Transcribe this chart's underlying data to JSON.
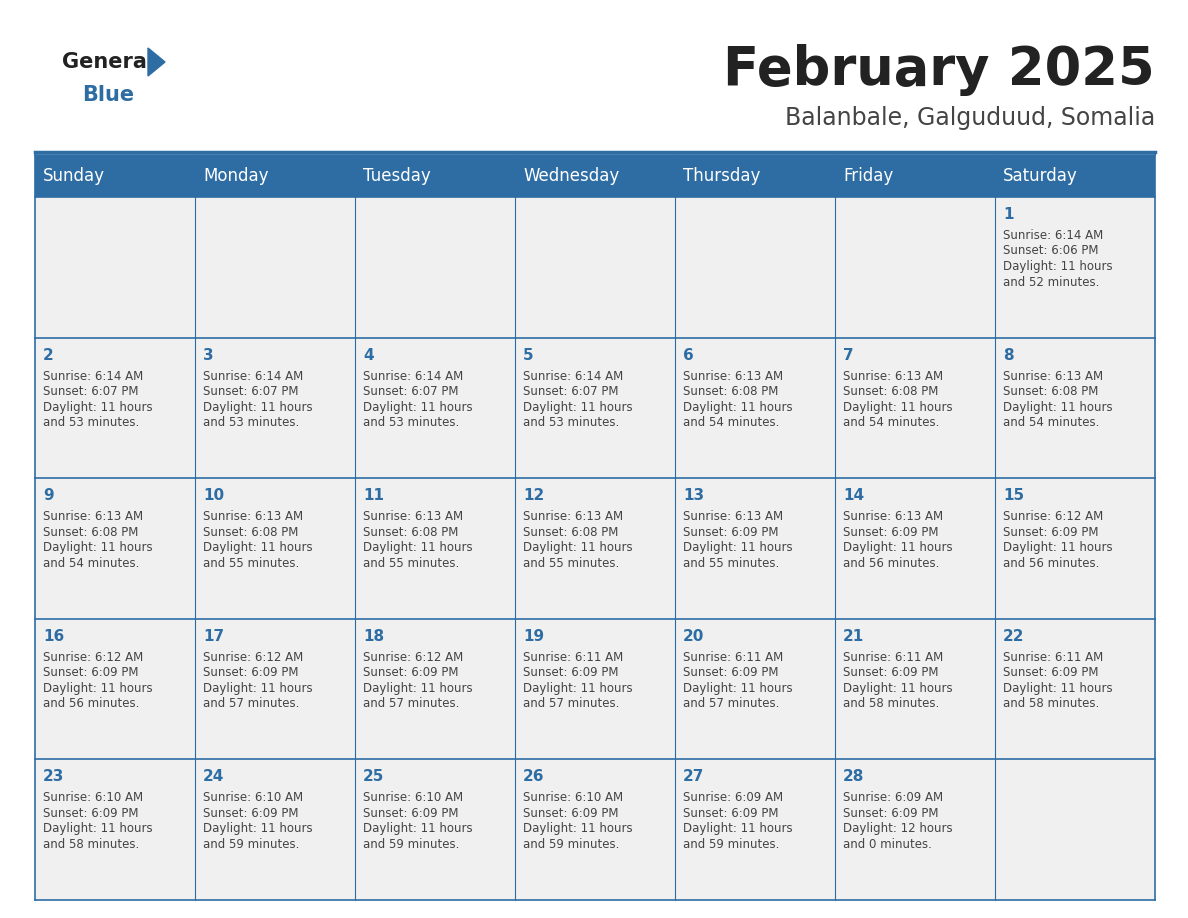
{
  "title": "February 2025",
  "subtitle": "Balanbale, Galguduud, Somalia",
  "header_color": "#2E6DA4",
  "header_text_color": "#FFFFFF",
  "cell_bg_color": "#F0F0F0",
  "border_color": "#2E6DA4",
  "day_number_color": "#2E6DA4",
  "text_color": "#444444",
  "days_of_week": [
    "Sunday",
    "Monday",
    "Tuesday",
    "Wednesday",
    "Thursday",
    "Friday",
    "Saturday"
  ],
  "calendar_data": [
    [
      null,
      null,
      null,
      null,
      null,
      null,
      {
        "day": 1,
        "sunrise": "6:14 AM",
        "sunset": "6:06 PM",
        "daylight_hours": 11,
        "daylight_minutes": 52
      }
    ],
    [
      {
        "day": 2,
        "sunrise": "6:14 AM",
        "sunset": "6:07 PM",
        "daylight_hours": 11,
        "daylight_minutes": 53
      },
      {
        "day": 3,
        "sunrise": "6:14 AM",
        "sunset": "6:07 PM",
        "daylight_hours": 11,
        "daylight_minutes": 53
      },
      {
        "day": 4,
        "sunrise": "6:14 AM",
        "sunset": "6:07 PM",
        "daylight_hours": 11,
        "daylight_minutes": 53
      },
      {
        "day": 5,
        "sunrise": "6:14 AM",
        "sunset": "6:07 PM",
        "daylight_hours": 11,
        "daylight_minutes": 53
      },
      {
        "day": 6,
        "sunrise": "6:13 AM",
        "sunset": "6:08 PM",
        "daylight_hours": 11,
        "daylight_minutes": 54
      },
      {
        "day": 7,
        "sunrise": "6:13 AM",
        "sunset": "6:08 PM",
        "daylight_hours": 11,
        "daylight_minutes": 54
      },
      {
        "day": 8,
        "sunrise": "6:13 AM",
        "sunset": "6:08 PM",
        "daylight_hours": 11,
        "daylight_minutes": 54
      }
    ],
    [
      {
        "day": 9,
        "sunrise": "6:13 AM",
        "sunset": "6:08 PM",
        "daylight_hours": 11,
        "daylight_minutes": 54
      },
      {
        "day": 10,
        "sunrise": "6:13 AM",
        "sunset": "6:08 PM",
        "daylight_hours": 11,
        "daylight_minutes": 55
      },
      {
        "day": 11,
        "sunrise": "6:13 AM",
        "sunset": "6:08 PM",
        "daylight_hours": 11,
        "daylight_minutes": 55
      },
      {
        "day": 12,
        "sunrise": "6:13 AM",
        "sunset": "6:08 PM",
        "daylight_hours": 11,
        "daylight_minutes": 55
      },
      {
        "day": 13,
        "sunrise": "6:13 AM",
        "sunset": "6:09 PM",
        "daylight_hours": 11,
        "daylight_minutes": 55
      },
      {
        "day": 14,
        "sunrise": "6:13 AM",
        "sunset": "6:09 PM",
        "daylight_hours": 11,
        "daylight_minutes": 56
      },
      {
        "day": 15,
        "sunrise": "6:12 AM",
        "sunset": "6:09 PM",
        "daylight_hours": 11,
        "daylight_minutes": 56
      }
    ],
    [
      {
        "day": 16,
        "sunrise": "6:12 AM",
        "sunset": "6:09 PM",
        "daylight_hours": 11,
        "daylight_minutes": 56
      },
      {
        "day": 17,
        "sunrise": "6:12 AM",
        "sunset": "6:09 PM",
        "daylight_hours": 11,
        "daylight_minutes": 57
      },
      {
        "day": 18,
        "sunrise": "6:12 AM",
        "sunset": "6:09 PM",
        "daylight_hours": 11,
        "daylight_minutes": 57
      },
      {
        "day": 19,
        "sunrise": "6:11 AM",
        "sunset": "6:09 PM",
        "daylight_hours": 11,
        "daylight_minutes": 57
      },
      {
        "day": 20,
        "sunrise": "6:11 AM",
        "sunset": "6:09 PM",
        "daylight_hours": 11,
        "daylight_minutes": 57
      },
      {
        "day": 21,
        "sunrise": "6:11 AM",
        "sunset": "6:09 PM",
        "daylight_hours": 11,
        "daylight_minutes": 58
      },
      {
        "day": 22,
        "sunrise": "6:11 AM",
        "sunset": "6:09 PM",
        "daylight_hours": 11,
        "daylight_minutes": 58
      }
    ],
    [
      {
        "day": 23,
        "sunrise": "6:10 AM",
        "sunset": "6:09 PM",
        "daylight_hours": 11,
        "daylight_minutes": 58
      },
      {
        "day": 24,
        "sunrise": "6:10 AM",
        "sunset": "6:09 PM",
        "daylight_hours": 11,
        "daylight_minutes": 59
      },
      {
        "day": 25,
        "sunrise": "6:10 AM",
        "sunset": "6:09 PM",
        "daylight_hours": 11,
        "daylight_minutes": 59
      },
      {
        "day": 26,
        "sunrise": "6:10 AM",
        "sunset": "6:09 PM",
        "daylight_hours": 11,
        "daylight_minutes": 59
      },
      {
        "day": 27,
        "sunrise": "6:09 AM",
        "sunset": "6:09 PM",
        "daylight_hours": 11,
        "daylight_minutes": 59
      },
      {
        "day": 28,
        "sunrise": "6:09 AM",
        "sunset": "6:09 PM",
        "daylight_hours": 12,
        "daylight_minutes": 0
      },
      null
    ]
  ],
  "logo_general_color": "#222222",
  "logo_blue_color": "#2E6DA4",
  "logo_triangle_color": "#2E6DA4",
  "title_fontsize": 38,
  "subtitle_fontsize": 17,
  "header_fontsize": 12,
  "day_num_fontsize": 11,
  "cell_text_fontsize": 8.5
}
